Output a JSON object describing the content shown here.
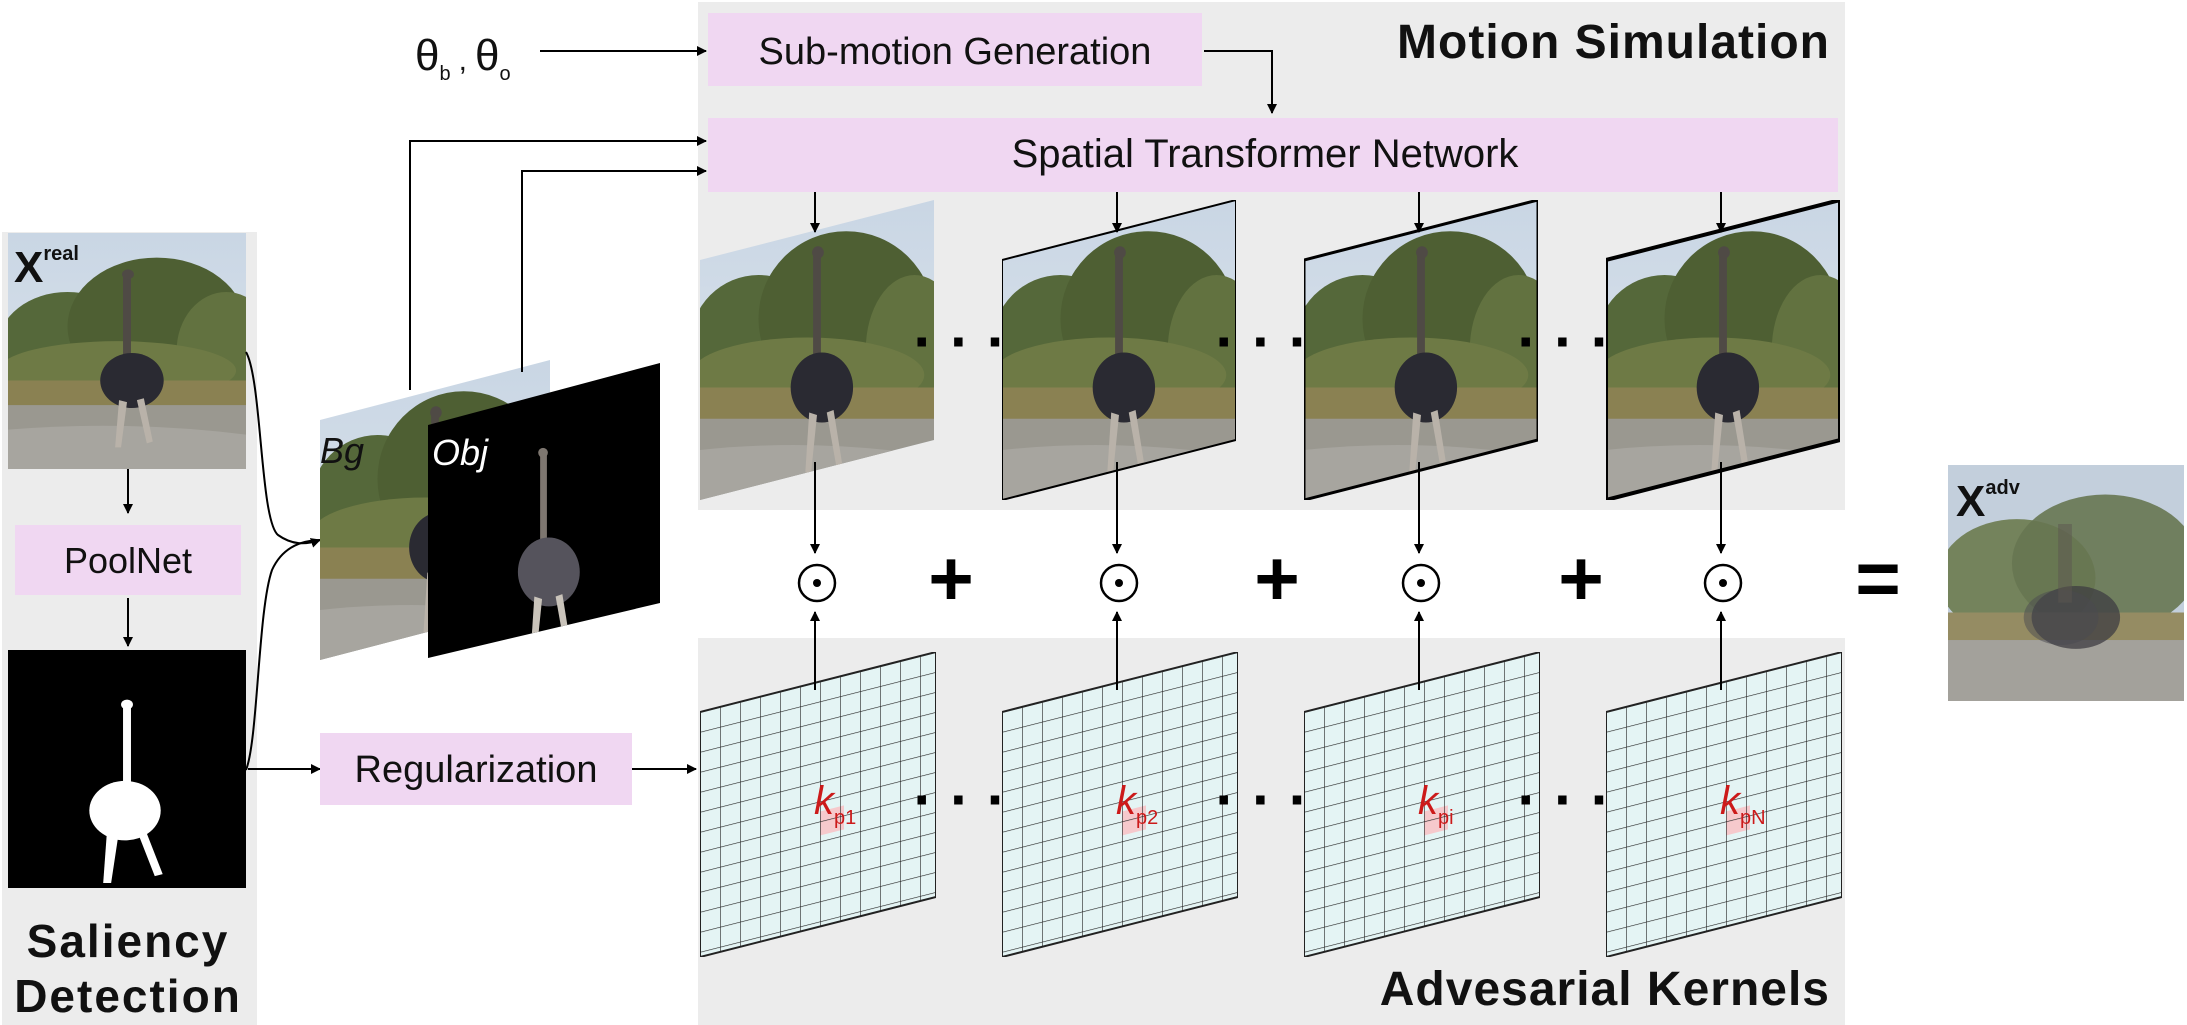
{
  "panels": {
    "saliency": {
      "title_line1": "Saliency",
      "title_line2": "Detection"
    },
    "motion": {
      "title": "Motion Simulation"
    },
    "kernels": {
      "title": "Advesarial Kernels"
    }
  },
  "inputs": {
    "x_real_base": "X",
    "x_real_sup": "real",
    "theta_b": "θ",
    "theta_b_sub": "b",
    "sep": ",",
    "theta_o": "θ",
    "theta_o_sub": "o"
  },
  "modules": {
    "poolnet": "PoolNet",
    "sub_motion": "Sub-motion Generation",
    "stn": "Spatial Transformer Network",
    "regularization": "Regularization"
  },
  "layers": {
    "bg": "Bg",
    "obj": "Obj"
  },
  "kernels": [
    {
      "base": "k",
      "sub": "p1"
    },
    {
      "base": "k",
      "sub": "p2"
    },
    {
      "base": "k",
      "sub": "pi"
    },
    {
      "base": "k",
      "sub": "pN"
    }
  ],
  "operators": {
    "dot": "⊙",
    "plus": "+",
    "equals": "=",
    "ellipsis": "· · ·"
  },
  "output": {
    "base": "X",
    "sup": "adv"
  },
  "colors": {
    "module_fill": "#f0d7f2",
    "panel_fill": "#ececec",
    "kernel_fill": "#e4f4f4",
    "kernel_cell": "#f6c9cc",
    "kernel_label": "#cc1a1a"
  }
}
